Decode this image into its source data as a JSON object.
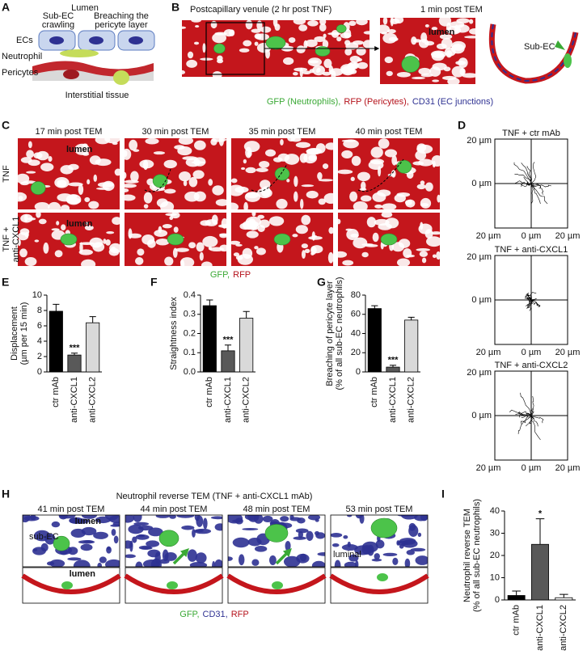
{
  "panel_labels": [
    "A",
    "B",
    "C",
    "D",
    "E",
    "F",
    "G",
    "H",
    "I"
  ],
  "panel_a": {
    "lumen": "Lumen",
    "sub_ec": [
      "Sub-EC",
      "crawling"
    ],
    "breaching": [
      "Breaching the",
      "pericyte layer"
    ],
    "ecs": "ECs",
    "neutrophil": "Neutrophil",
    "pericytes": "Pericytes",
    "interstitial": "Interstitial tissue"
  },
  "panel_b": {
    "title": "Postcapillary venule (2 hr post TNF)",
    "time": "1 min post TEM",
    "lumen": "lumen",
    "sub_ec": "Sub-EC",
    "legend": [
      {
        "text": "GFP (Neutrophils),",
        "color": "#3aa935"
      },
      {
        "text": "RFP (Pericytes),",
        "color": "#b5121b"
      },
      {
        "text": "CD31 (EC junctions)",
        "color": "#2e3192"
      }
    ]
  },
  "panel_c": {
    "times": [
      "17 min post TEM",
      "30 min post TEM",
      "35 min post TEM",
      "40 min post TEM"
    ],
    "rows": [
      [
        "TNF"
      ],
      [
        "TNF +",
        "anti-CXCL1"
      ]
    ],
    "lumen_labels": [
      "lumen",
      "lumen"
    ],
    "legend": [
      {
        "text": "GFP,",
        "color": "#3aa935"
      },
      {
        "text": "RFP",
        "color": "#b5121b"
      }
    ]
  },
  "panel_d": {
    "plots": [
      {
        "title": "TNF + ctr mAb",
        "tick_labels": {
          "y_top": "20 µm",
          "y_mid": "0 µm",
          "x_left": "20 µm",
          "x_mid": "0 µm",
          "x_right": "20 µm"
        }
      },
      {
        "title": "TNF + anti-CXCL1",
        "tick_labels": {
          "y_top": "20 µm",
          "y_mid": "0 µm",
          "x_left": "20 µm",
          "x_mid": "0 µm",
          "x_right": "20 µm"
        }
      },
      {
        "title": "TNF + anti-CXCL2",
        "tick_labels": {
          "y_top": "20 µm",
          "y_mid": "0 µm",
          "x_left": "20 µm",
          "x_mid": "0 µm",
          "x_right": "20 µm"
        }
      }
    ]
  },
  "panel_h": {
    "title": "Neutrophil reverse TEM (TNF + anti-CXCL1 mAb)",
    "times": [
      "41 min post TEM",
      "44 min post TEM",
      "48 min post TEM",
      "53 min post TEM"
    ],
    "lumen_labels": [
      "lumen",
      "lumen"
    ],
    "sub_ec": "sub-EC",
    "luminal": "luminal",
    "legend": [
      {
        "text": "GFP,",
        "color": "#3aa935"
      },
      {
        "text": "CD31,",
        "color": "#2e3192"
      },
      {
        "text": "RFP",
        "color": "#b5121b"
      }
    ]
  },
  "chart_data": [
    {
      "type": "bar",
      "y_label": [
        "Displacement",
        "(µm per 15 min)"
      ],
      "categories": [
        "ctr mAb",
        "anti-CXCL1",
        "anti-CXCL2"
      ],
      "values": [
        7.9,
        2.2,
        6.4
      ],
      "errors": [
        0.9,
        0.25,
        0.8
      ],
      "colors": [
        "#000000",
        "#595959",
        "#d9d9d9"
      ],
      "significance": [
        null,
        "***",
        null
      ],
      "ylim": [
        0,
        10
      ],
      "yticks": [
        0,
        2,
        4,
        6,
        8,
        10
      ]
    },
    {
      "type": "bar",
      "y_label": [
        "Straightness index"
      ],
      "categories": [
        "ctr mAb",
        "anti-CXCL1",
        "anti-CXCL2"
      ],
      "values": [
        0.345,
        0.11,
        0.28
      ],
      "errors": [
        0.03,
        0.03,
        0.035
      ],
      "colors": [
        "#000000",
        "#595959",
        "#d9d9d9"
      ],
      "significance": [
        null,
        "***",
        null
      ],
      "ylim": [
        0,
        0.4
      ],
      "yticks": [
        {
          "value": 0,
          "label": "0.0"
        },
        0.1,
        0.2,
        0.3,
        0.4
      ]
    },
    {
      "type": "bar",
      "y_label": [
        "Breaching of pericyte layer",
        "(% of all sub-EC neutrophils)"
      ],
      "categories": [
        "ctr mAb",
        "anti-CXCL1",
        "anti-CXCL2"
      ],
      "values": [
        66,
        5,
        54
      ],
      "errors": [
        3,
        2,
        3
      ],
      "colors": [
        "#000000",
        "#595959",
        "#d9d9d9"
      ],
      "significance": [
        null,
        "***",
        null
      ],
      "ylim": [
        0,
        80
      ],
      "yticks": [
        0,
        20,
        40,
        60,
        80
      ]
    },
    {
      "type": "bar",
      "y_label": [
        "Neutrophil reverse TEM",
        "(% of all sub-EC neutrophils)"
      ],
      "categories": [
        "ctr mAb",
        "anti-CXCL1",
        "anti-CXCL2"
      ],
      "values": [
        2,
        25,
        1
      ],
      "errors": [
        2,
        11.5,
        1.5
      ],
      "colors": [
        "#000000",
        "#595959",
        "#ffffff"
      ],
      "significance": [
        null,
        "*",
        null
      ],
      "ylim": [
        0,
        40
      ],
      "yticks": [
        0,
        10,
        20,
        30,
        40
      ]
    }
  ]
}
